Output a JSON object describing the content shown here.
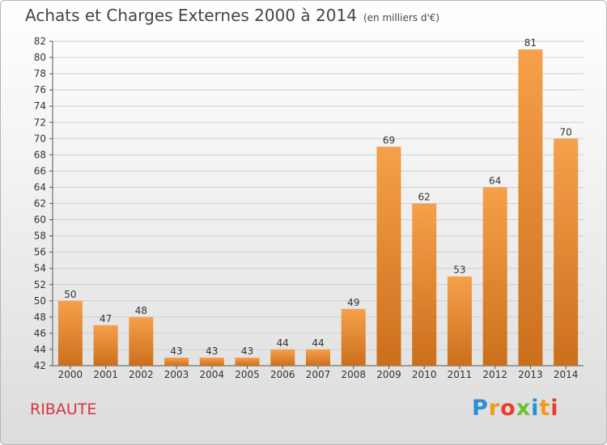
{
  "chart_data": {
    "type": "bar",
    "title": "Achats et Charges Externes 2000 à 2014",
    "subtitle": "(en milliers d'€)",
    "categories": [
      "2000",
      "2001",
      "2002",
      "2003",
      "2004",
      "2005",
      "2006",
      "2007",
      "2008",
      "2009",
      "2010",
      "2011",
      "2012",
      "2013",
      "2014"
    ],
    "values": [
      50,
      47,
      48,
      43,
      43,
      43,
      44,
      44,
      49,
      69,
      62,
      53,
      64,
      81,
      70
    ],
    "ylim": [
      42,
      82
    ],
    "ytick_step": 2,
    "grid": true,
    "bar_color": "#f0943a",
    "bar_color_dark": "#c96a1a"
  },
  "place": "RIBAUTE",
  "logo": {
    "letters": [
      "P",
      "r",
      "o",
      "x",
      "i",
      "t",
      "i"
    ],
    "colors": [
      "#2a8fd6",
      "#f29a1a",
      "#e8402a",
      "#6cc12f",
      "#2a8fd6",
      "#f29a1a",
      "#e8402a"
    ]
  }
}
